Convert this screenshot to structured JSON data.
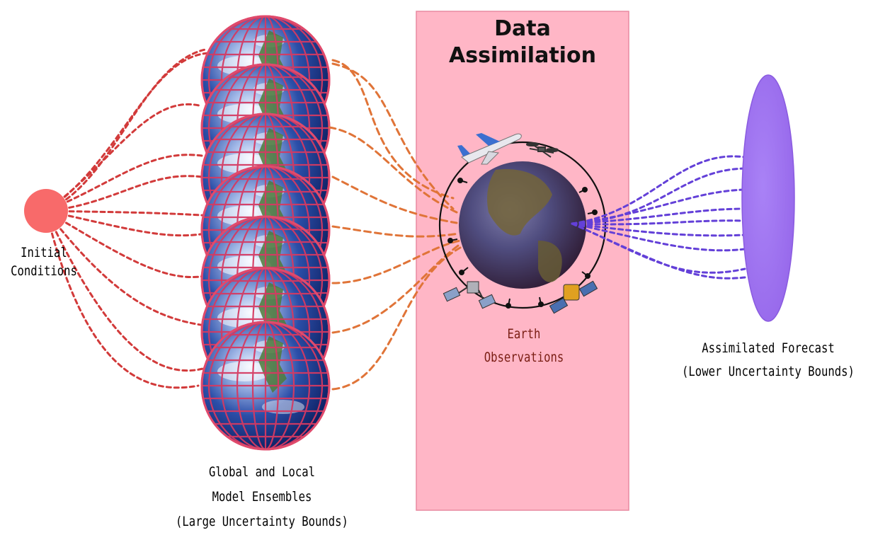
{
  "data_assimilation": {
    "title_line1": "Data",
    "title_line2": "Assimilation",
    "box_color": "#ffb6c6"
  },
  "initial_conditions": {
    "line1": "Initial",
    "line2": "Conditions",
    "color": "#f86a6a"
  },
  "model_ensembles": {
    "line1": "Global and Local",
    "line2": "Model Ensembles",
    "line3": "(Large Uncertainty Bounds)",
    "member_icon": "earth-globe-grid-icon",
    "member_count": 7
  },
  "earth_observations": {
    "line1": "Earth",
    "line2": "Observations",
    "icons": [
      "airplane-icon",
      "drone-icon",
      "satellite-icon",
      "satellite-icon",
      "weather-station-icon"
    ]
  },
  "assimilated_forecast": {
    "line1": "Assimilated Forecast",
    "line2": "(Lower Uncertainty Bounds)",
    "color": "#9d73f0"
  },
  "connector_colors": {
    "initial_to_models": "#d23a3a",
    "models_to_observations": "#e07438",
    "observations_to_forecast": "#6340d8"
  }
}
